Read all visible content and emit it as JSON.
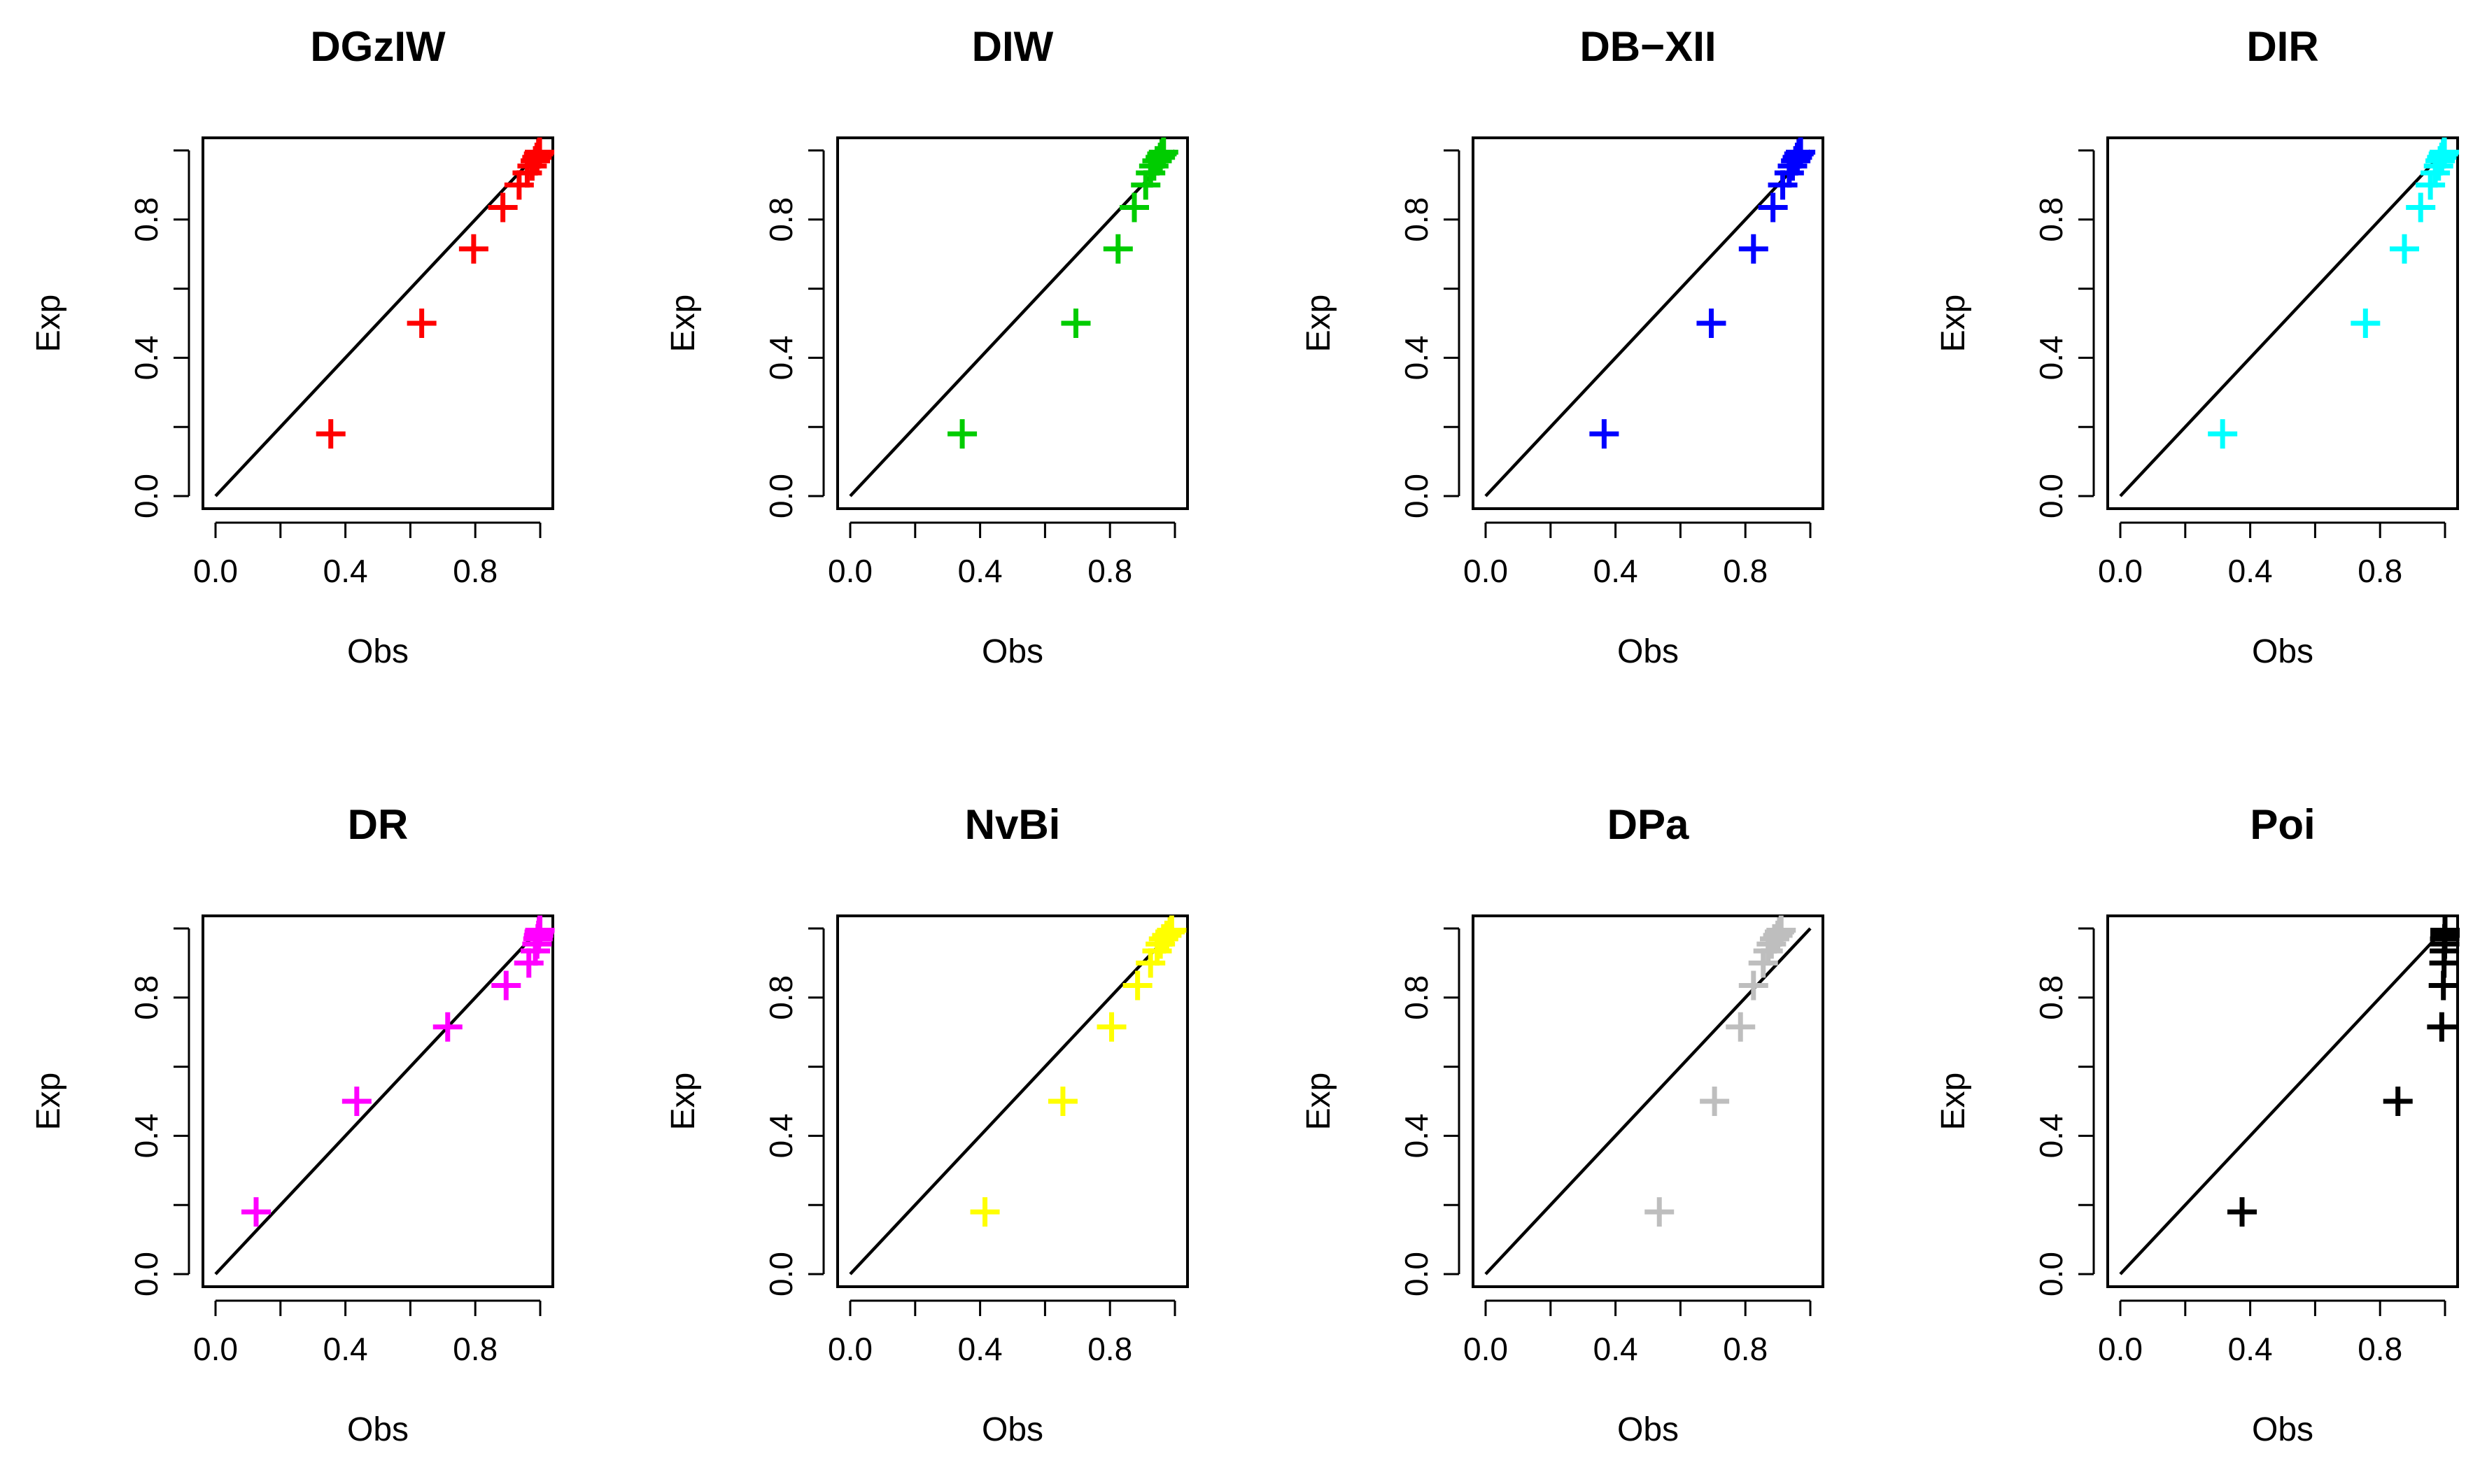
{
  "chart_data": [
    {
      "type": "scatter",
      "title": "DGzIW",
      "xlabel": "Obs",
      "ylabel": "Exp",
      "xlim": [
        0,
        1
      ],
      "ylim": [
        0,
        1
      ],
      "xticks": [
        "0.0",
        "0.4",
        "0.8"
      ],
      "yticks": [
        "0.0",
        "0.4",
        "0.8"
      ],
      "marker": "+",
      "color": "#FF0000",
      "reference_line": "y = x",
      "x": [
        0.355,
        0.635,
        0.795,
        0.885,
        0.935,
        0.96,
        0.975,
        0.985,
        0.99,
        0.995,
        0.998
      ],
      "y": [
        0.18,
        0.5,
        0.715,
        0.835,
        0.9,
        0.935,
        0.955,
        0.97,
        0.98,
        0.99,
        0.995
      ]
    },
    {
      "type": "scatter",
      "title": "DIW",
      "xlabel": "Obs",
      "ylabel": "Exp",
      "xlim": [
        0,
        1
      ],
      "ylim": [
        0,
        1
      ],
      "xticks": [
        "0.0",
        "0.4",
        "0.8"
      ],
      "yticks": [
        "0.0",
        "0.4",
        "0.8"
      ],
      "marker": "+",
      "color": "#00CC00",
      "reference_line": "y = x",
      "x": [
        0.345,
        0.695,
        0.825,
        0.875,
        0.91,
        0.925,
        0.935,
        0.945,
        0.955,
        0.96,
        0.965
      ],
      "y": [
        0.18,
        0.5,
        0.715,
        0.835,
        0.9,
        0.935,
        0.955,
        0.97,
        0.98,
        0.99,
        0.995
      ]
    },
    {
      "type": "scatter",
      "title": "DB−XII",
      "xlabel": "Obs",
      "ylabel": "Exp",
      "xlim": [
        0,
        1
      ],
      "ylim": [
        0,
        1
      ],
      "xticks": [
        "0.0",
        "0.4",
        "0.8"
      ],
      "yticks": [
        "0.0",
        "0.4",
        "0.8"
      ],
      "marker": "+",
      "color": "#0000FF",
      "reference_line": "y = x",
      "x": [
        0.365,
        0.695,
        0.825,
        0.885,
        0.915,
        0.935,
        0.945,
        0.955,
        0.96,
        0.965,
        0.97
      ],
      "y": [
        0.18,
        0.5,
        0.715,
        0.835,
        0.9,
        0.935,
        0.955,
        0.97,
        0.98,
        0.99,
        0.995
      ]
    },
    {
      "type": "scatter",
      "title": "DIR",
      "xlabel": "Obs",
      "ylabel": "Exp",
      "xlim": [
        0,
        1
      ],
      "ylim": [
        0,
        1
      ],
      "xticks": [
        "0.0",
        "0.4",
        "0.8"
      ],
      "yticks": [
        "0.0",
        "0.4",
        "0.8"
      ],
      "marker": "+",
      "color": "#00FFFF",
      "reference_line": "y = x",
      "x": [
        0.315,
        0.755,
        0.875,
        0.925,
        0.955,
        0.97,
        0.98,
        0.985,
        0.99,
        0.995,
        0.998
      ],
      "y": [
        0.18,
        0.5,
        0.715,
        0.835,
        0.9,
        0.935,
        0.955,
        0.97,
        0.98,
        0.99,
        0.995
      ]
    },
    {
      "type": "scatter",
      "title": "DR",
      "xlabel": "Obs",
      "ylabel": "Exp",
      "xlim": [
        0,
        1
      ],
      "ylim": [
        0,
        1
      ],
      "xticks": [
        "0.0",
        "0.4",
        "0.8"
      ],
      "yticks": [
        "0.0",
        "0.4",
        "0.8"
      ],
      "marker": "+",
      "color": "#FF00FF",
      "reference_line": "y = x",
      "x": [
        0.125,
        0.435,
        0.715,
        0.895,
        0.965,
        0.985,
        0.99,
        0.993,
        0.995,
        0.997,
        0.999
      ],
      "y": [
        0.18,
        0.5,
        0.715,
        0.835,
        0.9,
        0.935,
        0.955,
        0.97,
        0.98,
        0.99,
        0.995
      ]
    },
    {
      "type": "scatter",
      "title": "NvBi",
      "xlabel": "Obs",
      "ylabel": "Exp",
      "xlim": [
        0,
        1
      ],
      "ylim": [
        0,
        1
      ],
      "xticks": [
        "0.0",
        "0.4",
        "0.8"
      ],
      "yticks": [
        "0.0",
        "0.4",
        "0.8"
      ],
      "marker": "+",
      "color": "#FFFF00",
      "reference_line": "y = x",
      "x": [
        0.415,
        0.655,
        0.805,
        0.885,
        0.925,
        0.945,
        0.955,
        0.965,
        0.975,
        0.985,
        0.99
      ],
      "y": [
        0.18,
        0.5,
        0.715,
        0.835,
        0.9,
        0.935,
        0.955,
        0.97,
        0.98,
        0.99,
        0.995
      ]
    },
    {
      "type": "scatter",
      "title": "DPa",
      "xlabel": "Obs",
      "ylabel": "Exp",
      "xlim": [
        0,
        1
      ],
      "ylim": [
        0,
        1
      ],
      "xticks": [
        "0.0",
        "0.4",
        "0.8"
      ],
      "yticks": [
        "0.0",
        "0.4",
        "0.8"
      ],
      "marker": "+",
      "color": "#BEBEBE",
      "reference_line": "y = x",
      "x": [
        0.535,
        0.705,
        0.785,
        0.825,
        0.855,
        0.87,
        0.88,
        0.89,
        0.9,
        0.905,
        0.91
      ],
      "y": [
        0.18,
        0.5,
        0.715,
        0.835,
        0.9,
        0.935,
        0.955,
        0.97,
        0.98,
        0.99,
        0.995
      ]
    },
    {
      "type": "scatter",
      "title": "Poi",
      "xlabel": "Obs",
      "ylabel": "Exp",
      "xlim": [
        0,
        1
      ],
      "ylim": [
        0,
        1
      ],
      "xticks": [
        "0.0",
        "0.4",
        "0.8"
      ],
      "yticks": [
        "0.0",
        "0.4",
        "0.8"
      ],
      "marker": "+",
      "color": "#000000",
      "reference_line": "y = x",
      "x": [
        0.375,
        0.855,
        0.99,
        0.995,
        0.997,
        0.998,
        0.999,
        0.999,
        1.0,
        1.0,
        1.0
      ],
      "y": [
        0.18,
        0.5,
        0.715,
        0.835,
        0.9,
        0.935,
        0.955,
        0.97,
        0.98,
        0.99,
        0.995
      ]
    }
  ]
}
